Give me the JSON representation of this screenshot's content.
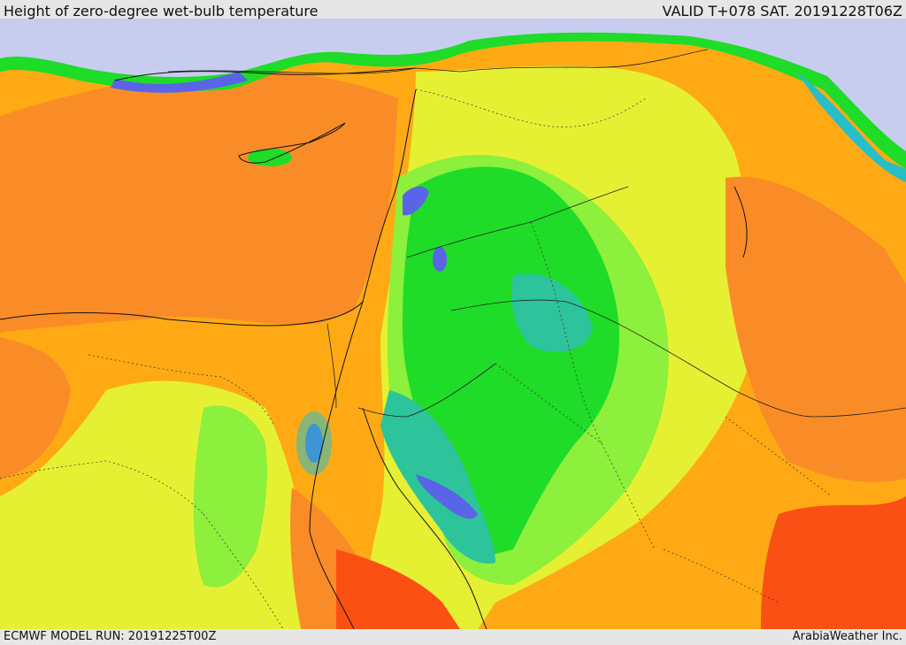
{
  "header": {
    "title": "Height of zero-degree wet-bulb temperature",
    "valid": "VALID T+078 SAT. 20191228T06Z"
  },
  "footer": {
    "model_run": "ECMWF MODEL RUN: 20191225T00Z",
    "credit": "ArabiaWeather Inc."
  },
  "map": {
    "field": "zero-degree wet-bulb height",
    "palette": {
      "snow": "#c8cdf0",
      "blue": "#5a64e6",
      "cyan": "#28bec8",
      "teal": "#2dc39b",
      "green": "#1edc28",
      "lightgreen": "#8cf03c",
      "yellow": "#e6f032",
      "orange": "#ffaa14",
      "darkorange": "#fa8c28",
      "red": "#fa5014"
    }
  }
}
